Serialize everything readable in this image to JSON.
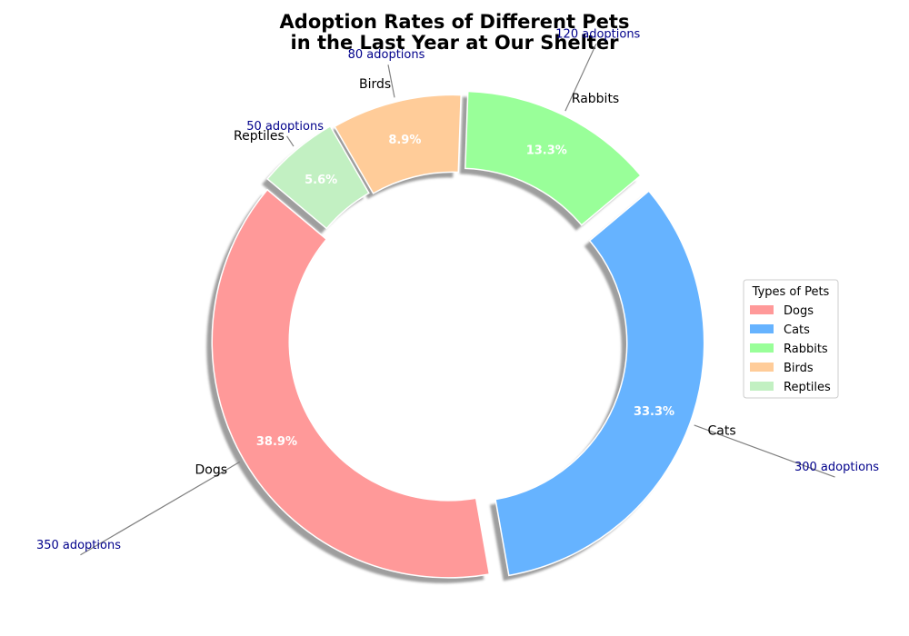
{
  "chart_data": {
    "type": "pie",
    "variant": "donut",
    "title_lines": [
      "Adoption Rates of Different Pets",
      "in the Last Year at Our Shelter"
    ],
    "categories": [
      "Dogs",
      "Cats",
      "Rabbits",
      "Birds",
      "Reptiles"
    ],
    "values": [
      350,
      300,
      120,
      80,
      50
    ],
    "percent_labels": [
      "38.9%",
      "33.3%",
      "13.3%",
      "8.9%",
      "5.6%"
    ],
    "annotations": [
      "350 adoptions",
      "300 adoptions",
      "120 adoptions",
      "80 adoptions",
      "50 adoptions"
    ],
    "colors": [
      "#FF9999",
      "#66B3FF",
      "#99FF99",
      "#FFCC99",
      "#C2F0C2"
    ],
    "annotation_color": "#00008B",
    "start_angle_deg": 140,
    "shadow": true,
    "legend": {
      "title": "Types of Pets",
      "position": "center-right",
      "entries": [
        "Dogs",
        "Cats",
        "Rabbits",
        "Birds",
        "Reptiles"
      ]
    }
  }
}
